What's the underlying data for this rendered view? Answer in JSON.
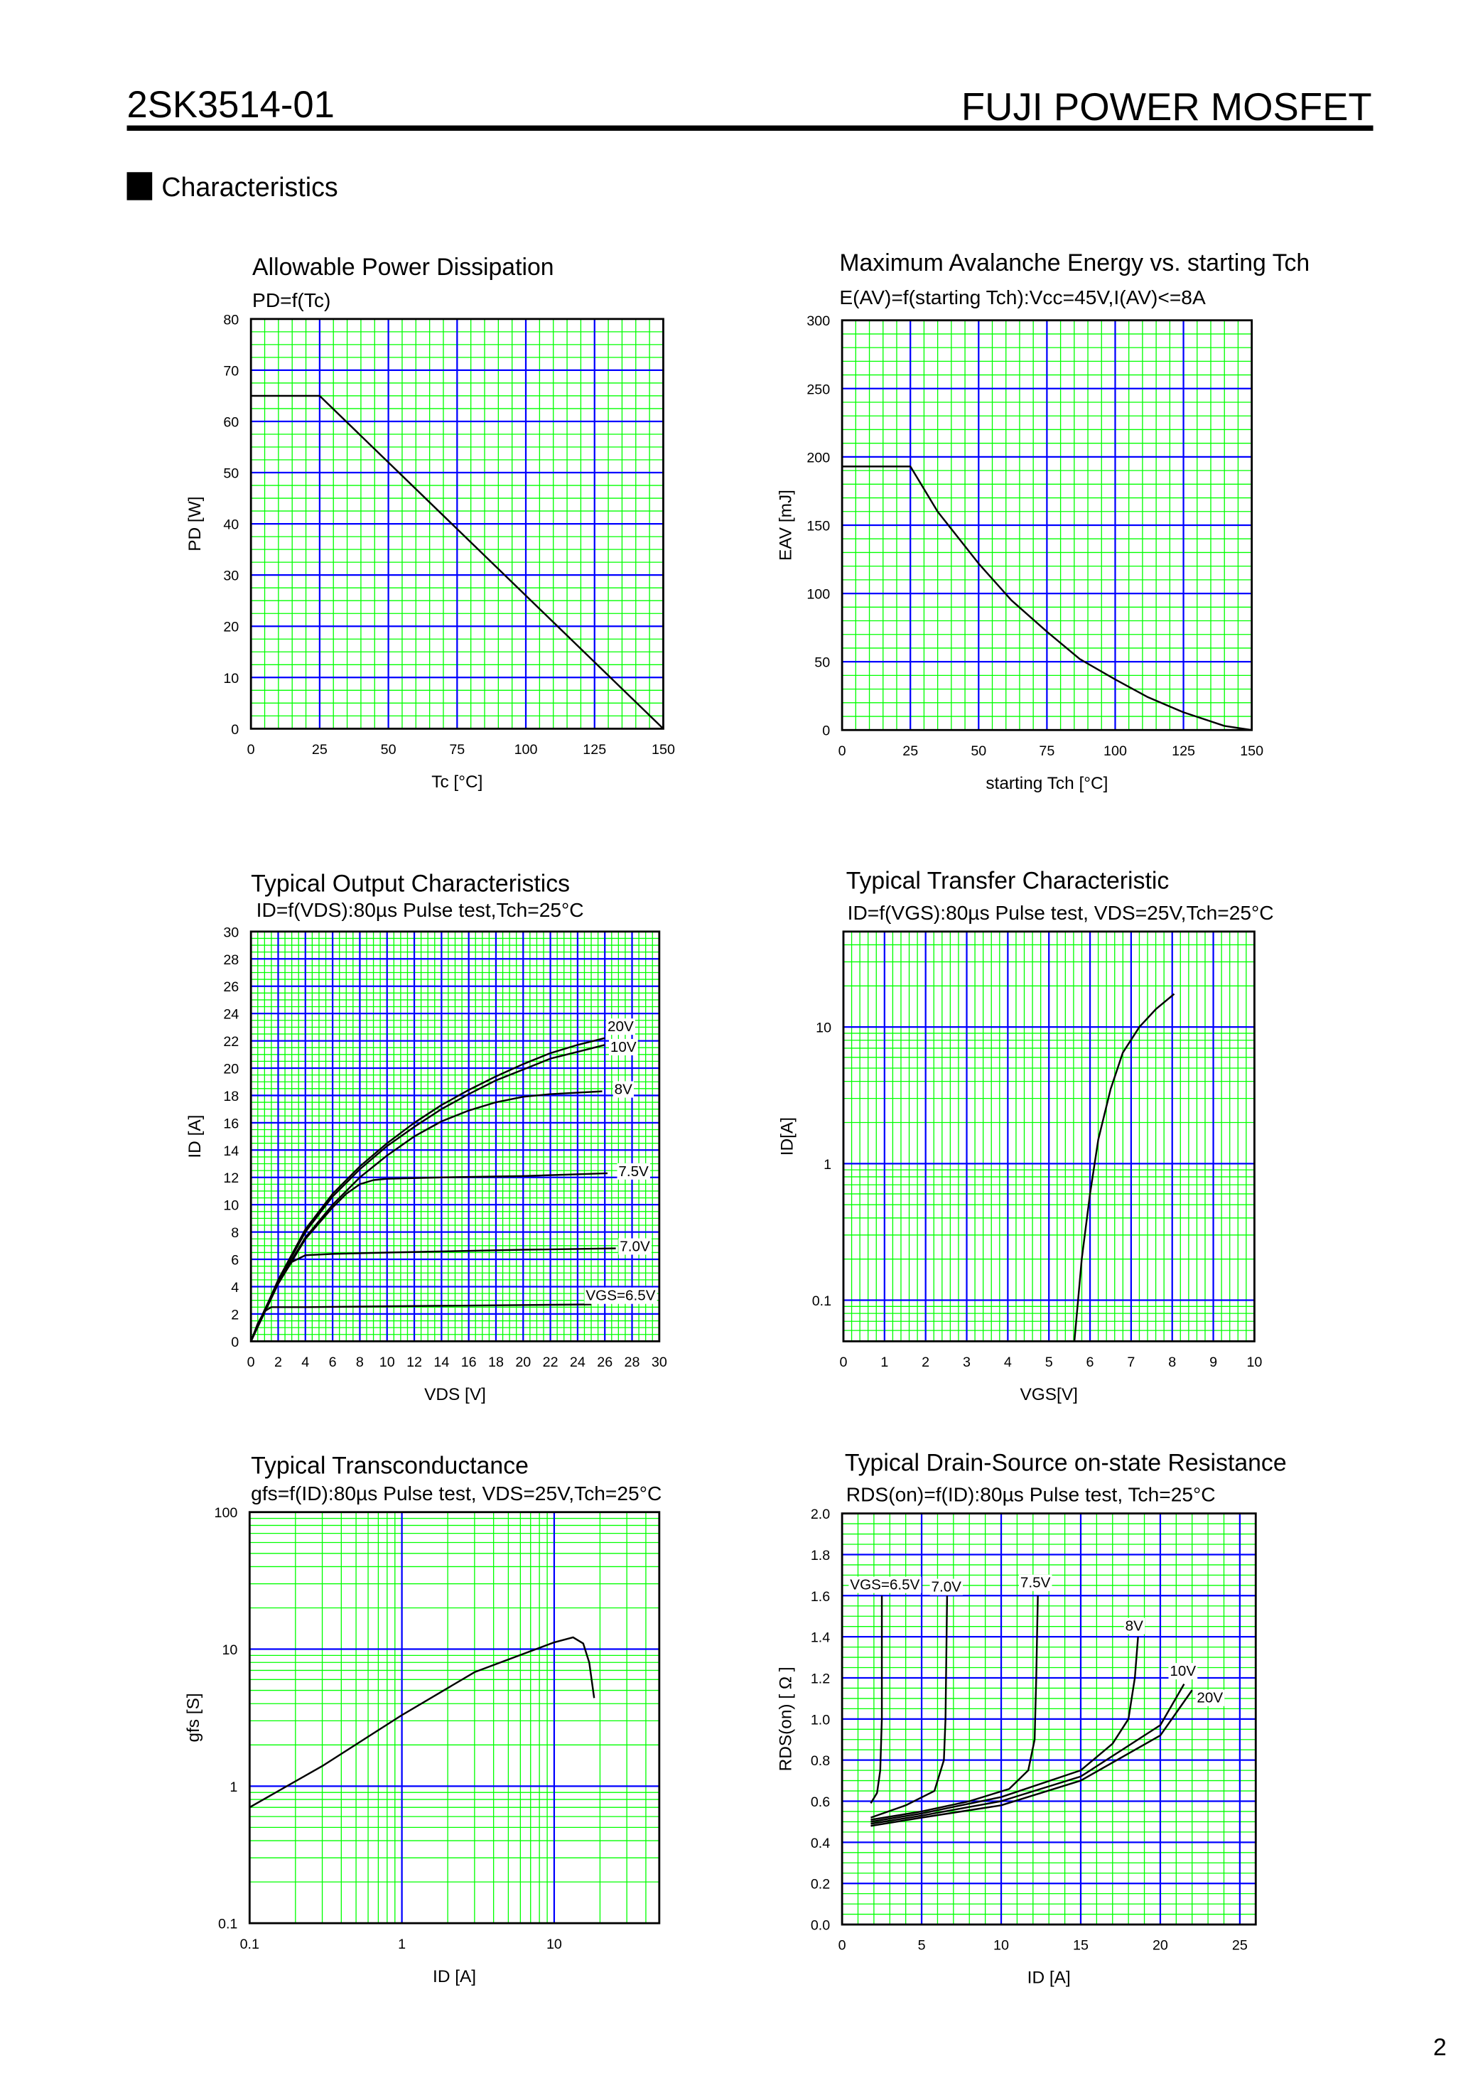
{
  "header": {
    "part_number": "2SK3514-01",
    "product_line": "FUJI POWER MOSFET"
  },
  "section": {
    "title": "Characteristics"
  },
  "page_number": "2",
  "colors": {
    "major_grid": "#0000ff",
    "minor_grid": "#00ff00",
    "curve": "#000000"
  },
  "chart_data": [
    {
      "type": "line",
      "title": "Allowable Power Dissipation",
      "subtitle": "PD=f(Tc)",
      "xlabel": "Tc [°C]",
      "ylabel": "PD [W]",
      "xscale": "linear",
      "yscale": "linear",
      "xlim": [
        0,
        150
      ],
      "ylim": [
        0,
        80
      ],
      "xticks": [
        0,
        25,
        50,
        75,
        100,
        125,
        150
      ],
      "yticks": [
        0,
        10,
        20,
        30,
        40,
        50,
        60,
        70,
        80
      ],
      "grid": {
        "x_major": 25,
        "x_minor": 5,
        "y_major": 10,
        "y_minor": 2.5
      },
      "series": [
        {
          "points": [
            [
              0,
              65
            ],
            [
              25,
              65
            ],
            [
              150,
              0
            ]
          ]
        }
      ]
    },
    {
      "type": "line",
      "title": "Maximum Avalanche Energy vs. starting Tch",
      "subtitle": "E(AV)=f(starting Tch):Vcc=45V,I(AV)<=8A",
      "xlabel": "starting Tch [°C]",
      "ylabel": "EAV [mJ]",
      "xscale": "linear",
      "yscale": "linear",
      "xlim": [
        0,
        150
      ],
      "ylim": [
        0,
        300
      ],
      "xticks": [
        0,
        25,
        50,
        75,
        100,
        125,
        150
      ],
      "yticks": [
        0,
        50,
        100,
        150,
        200,
        250,
        300
      ],
      "grid": {
        "x_major": 25,
        "x_minor": 5,
        "y_major": 50,
        "y_minor": 10
      },
      "series": [
        {
          "points": [
            [
              0,
              193
            ],
            [
              25,
              193
            ],
            [
              35,
              160
            ],
            [
              50,
              122
            ],
            [
              62,
              95
            ],
            [
              75,
              72
            ],
            [
              87,
              52
            ],
            [
              100,
              37
            ],
            [
              112,
              24
            ],
            [
              125,
              13
            ],
            [
              140,
              3
            ],
            [
              150,
              0
            ]
          ]
        }
      ]
    },
    {
      "type": "line",
      "title": "Typical Output Characteristics",
      "subtitle": "ID=f(VDS):80µs Pulse test,Tch=25°C",
      "xlabel": "VDS [V]",
      "ylabel": "ID [A]",
      "xscale": "linear",
      "yscale": "linear",
      "xlim": [
        0,
        30
      ],
      "ylim": [
        0,
        30
      ],
      "xticks": [
        0,
        2,
        4,
        6,
        8,
        10,
        12,
        14,
        16,
        18,
        20,
        22,
        24,
        26,
        28,
        30
      ],
      "yticks": [
        0,
        2,
        4,
        6,
        8,
        10,
        12,
        14,
        16,
        18,
        20,
        22,
        24,
        26,
        28,
        30
      ],
      "grid": {
        "x_major": 2,
        "x_minor": 0.5,
        "y_major": 2,
        "y_minor": 0.5
      },
      "series": [
        {
          "name": "20V",
          "label_at": [
            26.2,
            22.7
          ],
          "points": [
            [
              0,
              0
            ],
            [
              2,
              4.5
            ],
            [
              4,
              8.2
            ],
            [
              6,
              10.8
            ],
            [
              8,
              12.8
            ],
            [
              10,
              14.5
            ],
            [
              12,
              16
            ],
            [
              14,
              17.3
            ],
            [
              16,
              18.4
            ],
            [
              18,
              19.4
            ],
            [
              20,
              20.3
            ],
            [
              22,
              21.1
            ],
            [
              24,
              21.7
            ],
            [
              26,
              22.2
            ]
          ]
        },
        {
          "name": "10V",
          "label_at": [
            26.4,
            21.2
          ],
          "points": [
            [
              0,
              0
            ],
            [
              2,
              4.4
            ],
            [
              4,
              8
            ],
            [
              6,
              10.6
            ],
            [
              8,
              12.6
            ],
            [
              10,
              14.3
            ],
            [
              12,
              15.7
            ],
            [
              14,
              17
            ],
            [
              16,
              18.1
            ],
            [
              18,
              19.1
            ],
            [
              20,
              19.9
            ],
            [
              22,
              20.7
            ],
            [
              24,
              21.2
            ],
            [
              26,
              21.7
            ]
          ]
        },
        {
          "name": "8V",
          "label_at": [
            26.7,
            18.1
          ],
          "points": [
            [
              0,
              0
            ],
            [
              2,
              4.3
            ],
            [
              4,
              7.6
            ],
            [
              6,
              10
            ],
            [
              8,
              12
            ],
            [
              10,
              13.6
            ],
            [
              12,
              15
            ],
            [
              14,
              16.1
            ],
            [
              16,
              16.9
            ],
            [
              18,
              17.5
            ],
            [
              20,
              17.9
            ],
            [
              22,
              18.1
            ],
            [
              25.8,
              18.3
            ]
          ]
        },
        {
          "name": "7.5V",
          "label_at": [
            27,
            12.1
          ],
          "points": [
            [
              0,
              0
            ],
            [
              2,
              4.2
            ],
            [
              4,
              7.5
            ],
            [
              6,
              9.8
            ],
            [
              7,
              10.8
            ],
            [
              8,
              11.5
            ],
            [
              9,
              11.8
            ],
            [
              10,
              11.9
            ],
            [
              14,
              12
            ],
            [
              20,
              12.1
            ],
            [
              26.2,
              12.3
            ]
          ]
        },
        {
          "name": "7.0V",
          "label_at": [
            27.1,
            6.6
          ],
          "points": [
            [
              0,
              0
            ],
            [
              1,
              2.3
            ],
            [
              2,
              4.3
            ],
            [
              3,
              5.8
            ],
            [
              4,
              6.3
            ],
            [
              6,
              6.4
            ],
            [
              10,
              6.5
            ],
            [
              20,
              6.7
            ],
            [
              26.8,
              6.8
            ]
          ]
        },
        {
          "name": "VGS=6.5V",
          "label_at": [
            24.6,
            3.0
          ],
          "points": [
            [
              0,
              0
            ],
            [
              0.5,
              1.3
            ],
            [
              1,
              2.2
            ],
            [
              1.5,
              2.5
            ],
            [
              4,
              2.5
            ],
            [
              14,
              2.6
            ],
            [
              25,
              2.7
            ]
          ]
        }
      ]
    },
    {
      "type": "line",
      "title": "Typical Transfer Characteristic",
      "subtitle": "ID=f(VGS):80µs Pulse test, VDS=25V,Tch=25°C",
      "xlabel": "VGS[V]",
      "ylabel": "ID[A]",
      "xscale": "linear",
      "yscale": "log",
      "xlim": [
        0,
        10
      ],
      "ylim": [
        0.05,
        50
      ],
      "xticks": [
        0,
        1,
        2,
        3,
        4,
        5,
        6,
        7,
        8,
        9,
        10
      ],
      "yticks": [
        0.1,
        1,
        10
      ],
      "grid": {
        "x_major": 1,
        "x_minor": 0.2
      },
      "series": [
        {
          "points": [
            [
              5.62,
              0.05
            ],
            [
              5.8,
              0.2
            ],
            [
              6.0,
              0.6
            ],
            [
              6.2,
              1.5
            ],
            [
              6.5,
              3.5
            ],
            [
              6.8,
              6.5
            ],
            [
              7.2,
              10
            ],
            [
              7.6,
              13.5
            ],
            [
              8.05,
              17.5
            ]
          ]
        }
      ]
    },
    {
      "type": "line",
      "title": "Typical Transconductance",
      "subtitle": "gfs=f(ID):80µs Pulse test, VDS=25V,Tch=25°C",
      "xlabel": "ID [A]",
      "ylabel": "gfs [S]",
      "xscale": "log",
      "yscale": "log",
      "xlim": [
        0.1,
        49
      ],
      "ylim": [
        0.1,
        100
      ],
      "xticks": [
        0.1,
        1,
        10
      ],
      "yticks": [
        0.1,
        1,
        10,
        100
      ],
      "grid": {},
      "series": [
        {
          "points": [
            [
              0.1,
              0.7
            ],
            [
              0.3,
              1.4
            ],
            [
              1,
              3.3
            ],
            [
              3,
              6.8
            ],
            [
              10,
              11.2
            ],
            [
              13.3,
              12.2
            ],
            [
              15.5,
              11
            ],
            [
              17,
              8
            ],
            [
              18.3,
              4.4
            ]
          ]
        }
      ]
    },
    {
      "type": "line",
      "title": "Typical Drain-Source on-state Resistance",
      "subtitle": "RDS(on)=f(ID):80µs Pulse test, Tch=25°C",
      "xlabel": "ID [A]",
      "ylabel": "RDS(on) [ Ω ]",
      "xscale": "linear",
      "yscale": "linear",
      "xlim": [
        0,
        26
      ],
      "ylim": [
        0,
        2.0
      ],
      "xticks": [
        0,
        5,
        10,
        15,
        20,
        25
      ],
      "yticks": [
        "0.0",
        "0.2",
        "0.4",
        "0.6",
        "0.8",
        "1.0",
        "1.2",
        "1.4",
        "1.6",
        "1.8",
        "2.0"
      ],
      "grid": {
        "x_major": 5,
        "x_minor": 1,
        "y_major": 0.2,
        "y_minor": 0.05
      },
      "series": [
        {
          "name": "VGS=6.5V",
          "label_at": [
            0.5,
            1.63
          ],
          "points": [
            [
              1.8,
              0.59
            ],
            [
              2.2,
              0.64
            ],
            [
              2.4,
              0.75
            ],
            [
              2.5,
              1.0
            ],
            [
              2.5,
              1.6
            ]
          ]
        },
        {
          "name": "7.0V",
          "label_at": [
            5.6,
            1.62
          ],
          "points": [
            [
              1.8,
              0.52
            ],
            [
              4,
              0.58
            ],
            [
              5.8,
              0.65
            ],
            [
              6.4,
              0.8
            ],
            [
              6.5,
              1.0
            ],
            [
              6.6,
              1.6
            ]
          ]
        },
        {
          "name": "7.5V",
          "label_at": [
            11.2,
            1.64
          ],
          "points": [
            [
              1.8,
              0.51
            ],
            [
              5,
              0.55
            ],
            [
              8,
              0.6
            ],
            [
              10.5,
              0.66
            ],
            [
              11.7,
              0.75
            ],
            [
              12.1,
              0.9
            ],
            [
              12.2,
              1.2
            ],
            [
              12.3,
              1.6
            ]
          ]
        },
        {
          "name": "8V",
          "label_at": [
            17.8,
            1.43
          ],
          "points": [
            [
              1.8,
              0.5
            ],
            [
              5,
              0.54
            ],
            [
              10,
              0.62
            ],
            [
              15,
              0.75
            ],
            [
              17,
              0.88
            ],
            [
              18,
              1.0
            ],
            [
              18.4,
              1.2
            ],
            [
              18.6,
              1.4
            ]
          ]
        },
        {
          "name": "10V",
          "label_at": [
            20.6,
            1.21
          ],
          "points": [
            [
              1.8,
              0.49
            ],
            [
              5,
              0.53
            ],
            [
              10,
              0.6
            ],
            [
              15,
              0.72
            ],
            [
              20,
              0.97
            ],
            [
              21.5,
              1.17
            ]
          ]
        },
        {
          "name": "20V",
          "label_at": [
            22.3,
            1.08
          ],
          "points": [
            [
              1.8,
              0.48
            ],
            [
              5,
              0.52
            ],
            [
              10,
              0.58
            ],
            [
              15,
              0.7
            ],
            [
              20,
              0.92
            ],
            [
              22,
              1.14
            ]
          ]
        }
      ]
    }
  ]
}
